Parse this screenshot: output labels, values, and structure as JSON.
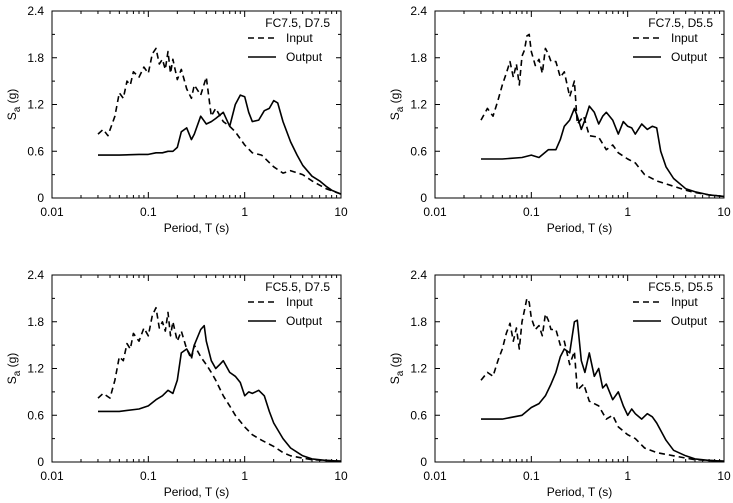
{
  "chart_data": [
    {
      "type": "line",
      "title": "FC7.5, D7.5",
      "xlabel": "Period, T (s)",
      "ylabel_main": "S",
      "ylabel_sub": "a",
      "ylabel_unit": " (g)",
      "xscale": "log",
      "xlim": [
        0.01,
        10
      ],
      "ylim": [
        0,
        2.4
      ],
      "xticks": [
        "0.01",
        "0.1",
        "1",
        "10"
      ],
      "yticks": [
        "0",
        "0.6",
        "1.2",
        "1.8",
        "2.4"
      ],
      "legend_placement": "top-right",
      "series": [
        {
          "name": "Input",
          "style": "dashed",
          "x": [
            0.03,
            0.034,
            0.038,
            0.045,
            0.05,
            0.055,
            0.06,
            0.065,
            0.07,
            0.08,
            0.09,
            0.1,
            0.11,
            0.12,
            0.13,
            0.14,
            0.15,
            0.16,
            0.17,
            0.18,
            0.2,
            0.22,
            0.25,
            0.28,
            0.3,
            0.35,
            0.4,
            0.45,
            0.5,
            0.6,
            0.7,
            0.8,
            1.0,
            1.2,
            1.5,
            2.0,
            2.5,
            3.0,
            4.0,
            5.0,
            7.0,
            10.0
          ],
          "y": [
            0.82,
            0.88,
            0.8,
            1.05,
            1.35,
            1.28,
            1.5,
            1.45,
            1.62,
            1.55,
            1.68,
            1.6,
            1.85,
            1.92,
            1.72,
            1.78,
            1.65,
            1.88,
            1.6,
            1.78,
            1.52,
            1.65,
            1.4,
            1.28,
            1.45,
            1.32,
            1.55,
            1.05,
            1.15,
            0.98,
            0.92,
            0.85,
            0.68,
            0.58,
            0.55,
            0.4,
            0.32,
            0.35,
            0.3,
            0.22,
            0.12,
            0.05
          ]
        },
        {
          "name": "Output",
          "style": "solid",
          "x": [
            0.03,
            0.05,
            0.08,
            0.1,
            0.12,
            0.14,
            0.16,
            0.18,
            0.2,
            0.22,
            0.25,
            0.28,
            0.3,
            0.35,
            0.4,
            0.45,
            0.5,
            0.6,
            0.7,
            0.8,
            0.9,
            1.0,
            1.1,
            1.2,
            1.4,
            1.6,
            1.8,
            2.0,
            2.2,
            2.5,
            3.0,
            3.5,
            4.0,
            5.0,
            6.0,
            7.0,
            8.0,
            10.0
          ],
          "y": [
            0.55,
            0.55,
            0.56,
            0.56,
            0.58,
            0.58,
            0.6,
            0.6,
            0.65,
            0.85,
            0.9,
            0.75,
            0.82,
            1.05,
            0.95,
            0.98,
            1.02,
            1.1,
            0.92,
            1.2,
            1.32,
            1.3,
            1.1,
            0.98,
            1.0,
            1.12,
            1.15,
            1.25,
            1.22,
            0.98,
            0.72,
            0.55,
            0.42,
            0.28,
            0.22,
            0.15,
            0.1,
            0.05
          ]
        }
      ]
    },
    {
      "type": "line",
      "title": "FC7.5, D5.5",
      "xlabel": "Period, T (s)",
      "ylabel_main": "S",
      "ylabel_sub": "a",
      "ylabel_unit": " (g)",
      "xscale": "log",
      "xlim": [
        0.01,
        10
      ],
      "ylim": [
        0,
        2.4
      ],
      "xticks": [
        "0.01",
        "0.1",
        "1",
        "10"
      ],
      "yticks": [
        "0",
        "0.6",
        "1.2",
        "1.8",
        "2.4"
      ],
      "legend_placement": "top-right",
      "series": [
        {
          "name": "Input",
          "style": "dashed",
          "x": [
            0.03,
            0.035,
            0.04,
            0.045,
            0.05,
            0.055,
            0.06,
            0.065,
            0.07,
            0.075,
            0.08,
            0.085,
            0.09,
            0.095,
            0.1,
            0.11,
            0.12,
            0.13,
            0.14,
            0.15,
            0.16,
            0.18,
            0.2,
            0.22,
            0.25,
            0.28,
            0.3,
            0.35,
            0.4,
            0.5,
            0.6,
            0.7,
            0.8,
            1.0,
            1.2,
            1.5,
            2.0,
            3.0,
            4.0,
            5.0,
            7.0,
            10.0
          ],
          "y": [
            1.0,
            1.15,
            1.05,
            1.25,
            1.45,
            1.6,
            1.75,
            1.55,
            1.72,
            1.45,
            1.82,
            1.9,
            2.08,
            2.1,
            1.88,
            1.7,
            1.78,
            1.6,
            1.92,
            1.85,
            1.75,
            1.75,
            1.55,
            1.62,
            1.3,
            1.5,
            0.95,
            1.05,
            0.8,
            0.78,
            0.62,
            0.68,
            0.58,
            0.5,
            0.45,
            0.3,
            0.22,
            0.15,
            0.1,
            0.07,
            0.04,
            0.02
          ]
        },
        {
          "name": "Output",
          "style": "solid",
          "x": [
            0.03,
            0.05,
            0.08,
            0.1,
            0.12,
            0.15,
            0.18,
            0.2,
            0.22,
            0.25,
            0.28,
            0.3,
            0.33,
            0.36,
            0.4,
            0.45,
            0.5,
            0.55,
            0.6,
            0.7,
            0.8,
            0.9,
            1.0,
            1.1,
            1.2,
            1.4,
            1.6,
            1.8,
            2.0,
            2.2,
            2.5,
            3.0,
            4.0,
            5.0,
            7.0,
            10.0
          ],
          "y": [
            0.5,
            0.5,
            0.52,
            0.55,
            0.52,
            0.62,
            0.62,
            0.75,
            0.92,
            1.0,
            1.15,
            1.05,
            0.88,
            1.0,
            1.18,
            1.1,
            0.95,
            1.05,
            1.1,
            1.0,
            0.82,
            0.98,
            0.92,
            0.9,
            0.82,
            0.95,
            0.88,
            0.92,
            0.9,
            0.6,
            0.4,
            0.25,
            0.12,
            0.08,
            0.04,
            0.02
          ]
        }
      ]
    },
    {
      "type": "line",
      "title": "FC5.5, D7.5",
      "xlabel": "Period, T (s)",
      "ylabel_main": "S",
      "ylabel_sub": "a",
      "ylabel_unit": " (g)",
      "xscale": "log",
      "xlim": [
        0.01,
        10
      ],
      "ylim": [
        0,
        2.4
      ],
      "xticks": [
        "0.01",
        "0.1",
        "1",
        "10"
      ],
      "yticks": [
        "0",
        "0.6",
        "1.2",
        "1.8",
        "2.4"
      ],
      "legend_placement": "top-right",
      "series": [
        {
          "name": "Input",
          "style": "dashed",
          "x": [
            0.03,
            0.034,
            0.04,
            0.045,
            0.05,
            0.055,
            0.06,
            0.065,
            0.07,
            0.08,
            0.09,
            0.1,
            0.11,
            0.12,
            0.13,
            0.14,
            0.15,
            0.16,
            0.17,
            0.18,
            0.2,
            0.22,
            0.25,
            0.28,
            0.3,
            0.35,
            0.4,
            0.45,
            0.5,
            0.6,
            0.7,
            0.8,
            1.0,
            1.2,
            1.5,
            2.0,
            2.5,
            3.0,
            4.0,
            5.0,
            7.0,
            10.0
          ],
          "y": [
            0.82,
            0.88,
            0.82,
            1.05,
            1.35,
            1.3,
            1.52,
            1.45,
            1.65,
            1.55,
            1.72,
            1.62,
            1.88,
            1.98,
            1.72,
            1.8,
            1.68,
            1.92,
            1.62,
            1.8,
            1.55,
            1.68,
            1.45,
            1.32,
            1.5,
            1.35,
            1.25,
            1.15,
            1.05,
            0.85,
            0.72,
            0.6,
            0.45,
            0.35,
            0.28,
            0.2,
            0.12,
            0.08,
            0.05,
            0.03,
            0.02,
            0.01
          ]
        },
        {
          "name": "Output",
          "style": "solid",
          "x": [
            0.03,
            0.05,
            0.08,
            0.1,
            0.12,
            0.14,
            0.16,
            0.18,
            0.2,
            0.22,
            0.25,
            0.28,
            0.3,
            0.35,
            0.38,
            0.4,
            0.45,
            0.5,
            0.55,
            0.6,
            0.7,
            0.8,
            0.9,
            1.0,
            1.1,
            1.2,
            1.4,
            1.6,
            1.8,
            2.0,
            2.5,
            3.0,
            4.0,
            5.0,
            7.0,
            10.0
          ],
          "y": [
            0.65,
            0.65,
            0.68,
            0.72,
            0.8,
            0.85,
            0.92,
            0.88,
            1.05,
            1.4,
            1.45,
            1.35,
            1.5,
            1.7,
            1.75,
            1.55,
            1.3,
            1.2,
            1.25,
            1.3,
            1.15,
            1.1,
            1.02,
            0.85,
            0.9,
            0.88,
            0.92,
            0.85,
            0.65,
            0.5,
            0.3,
            0.18,
            0.08,
            0.04,
            0.02,
            0.01
          ]
        }
      ]
    },
    {
      "type": "line",
      "title": "FC5.5, D5.5",
      "xlabel": "Period, T (s)",
      "ylabel_main": "S",
      "ylabel_sub": "a",
      "ylabel_unit": " (g)",
      "xscale": "log",
      "xlim": [
        0.01,
        10
      ],
      "ylim": [
        0,
        2.4
      ],
      "xticks": [
        "0.01",
        "0.1",
        "1",
        "10"
      ],
      "yticks": [
        "0",
        "0.6",
        "1.2",
        "1.8",
        "2.4"
      ],
      "legend_placement": "top-right",
      "series": [
        {
          "name": "Input",
          "style": "dashed",
          "x": [
            0.03,
            0.035,
            0.04,
            0.045,
            0.05,
            0.055,
            0.06,
            0.065,
            0.07,
            0.075,
            0.08,
            0.085,
            0.09,
            0.095,
            0.1,
            0.11,
            0.12,
            0.13,
            0.14,
            0.15,
            0.16,
            0.18,
            0.2,
            0.22,
            0.25,
            0.28,
            0.3,
            0.35,
            0.4,
            0.5,
            0.6,
            0.7,
            0.8,
            1.0,
            1.2,
            1.5,
            2.0,
            3.0,
            4.0,
            5.0,
            7.0,
            10.0
          ],
          "y": [
            1.05,
            1.15,
            1.1,
            1.3,
            1.45,
            1.65,
            1.78,
            1.55,
            1.72,
            1.45,
            1.8,
            1.95,
            2.1,
            2.05,
            1.85,
            1.7,
            1.75,
            1.62,
            1.9,
            1.82,
            1.7,
            1.7,
            1.5,
            1.55,
            1.25,
            1.42,
            0.92,
            1.0,
            0.78,
            0.72,
            0.55,
            0.6,
            0.45,
            0.35,
            0.3,
            0.18,
            0.12,
            0.08,
            0.05,
            0.03,
            0.02,
            0.01
          ]
        },
        {
          "name": "Output",
          "style": "solid",
          "x": [
            0.03,
            0.05,
            0.08,
            0.1,
            0.12,
            0.14,
            0.16,
            0.18,
            0.2,
            0.22,
            0.25,
            0.28,
            0.3,
            0.33,
            0.36,
            0.4,
            0.45,
            0.5,
            0.55,
            0.6,
            0.7,
            0.8,
            0.9,
            1.0,
            1.1,
            1.2,
            1.4,
            1.6,
            1.8,
            2.0,
            2.5,
            3.0,
            4.0,
            5.0,
            7.0,
            10.0
          ],
          "y": [
            0.55,
            0.55,
            0.6,
            0.7,
            0.75,
            0.85,
            1.0,
            1.15,
            1.35,
            1.45,
            1.4,
            1.8,
            1.82,
            1.3,
            1.15,
            1.4,
            1.1,
            1.2,
            0.95,
            1.0,
            0.8,
            0.9,
            0.72,
            0.6,
            0.68,
            0.62,
            0.55,
            0.62,
            0.58,
            0.5,
            0.28,
            0.15,
            0.08,
            0.04,
            0.02,
            0.01
          ]
        }
      ]
    }
  ]
}
